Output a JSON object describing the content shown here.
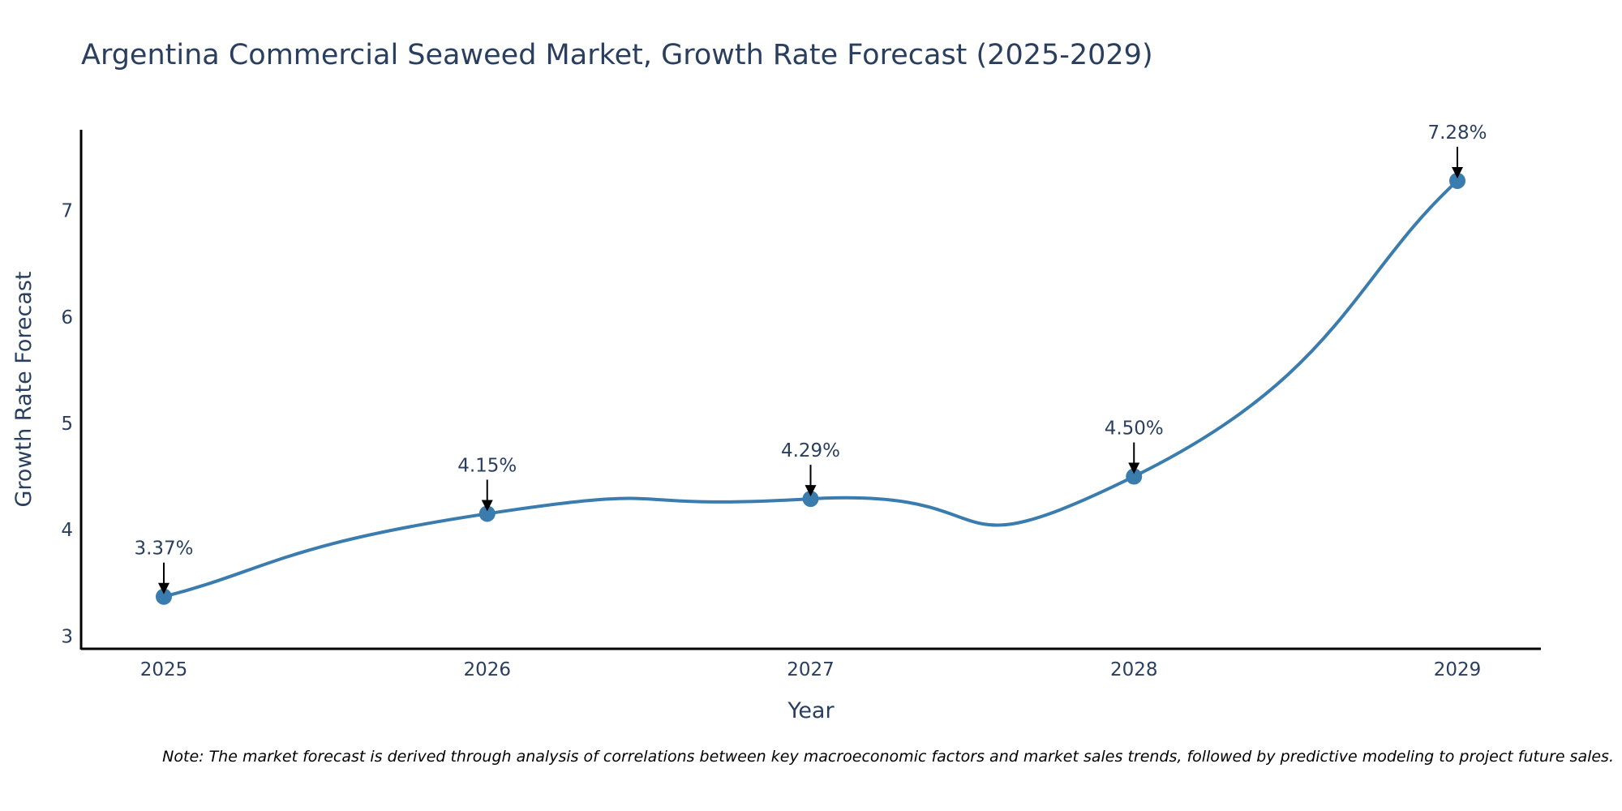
{
  "chart_data": {
    "type": "line",
    "title": "Argentina Commercial Seaweed Market, Growth Rate Forecast (2025-2029)",
    "xlabel": "Year",
    "ylabel": "Growth Rate Forecast",
    "x": [
      "2025",
      "2026",
      "2027",
      "2028",
      "2029"
    ],
    "values": [
      3.37,
      4.15,
      4.29,
      4.5,
      7.28
    ],
    "data_labels": [
      "3.37%",
      "4.15%",
      "4.29%",
      "4.50%",
      "7.28%"
    ],
    "ylim": [
      2.88,
      7.76
    ],
    "yticks": [
      3,
      4,
      5,
      6,
      7
    ],
    "line_shape": "spline",
    "grid": false,
    "legend": "none",
    "line_color": "#3a7cad",
    "marker_color": "#3a7cad",
    "axis_color": "#000000",
    "text_color": "#2a3f5f",
    "note": "Note: The market forecast is derived through analysis of correlations between key macroeconomic factors and market sales trends, followed by predictive modeling to project future sales."
  }
}
